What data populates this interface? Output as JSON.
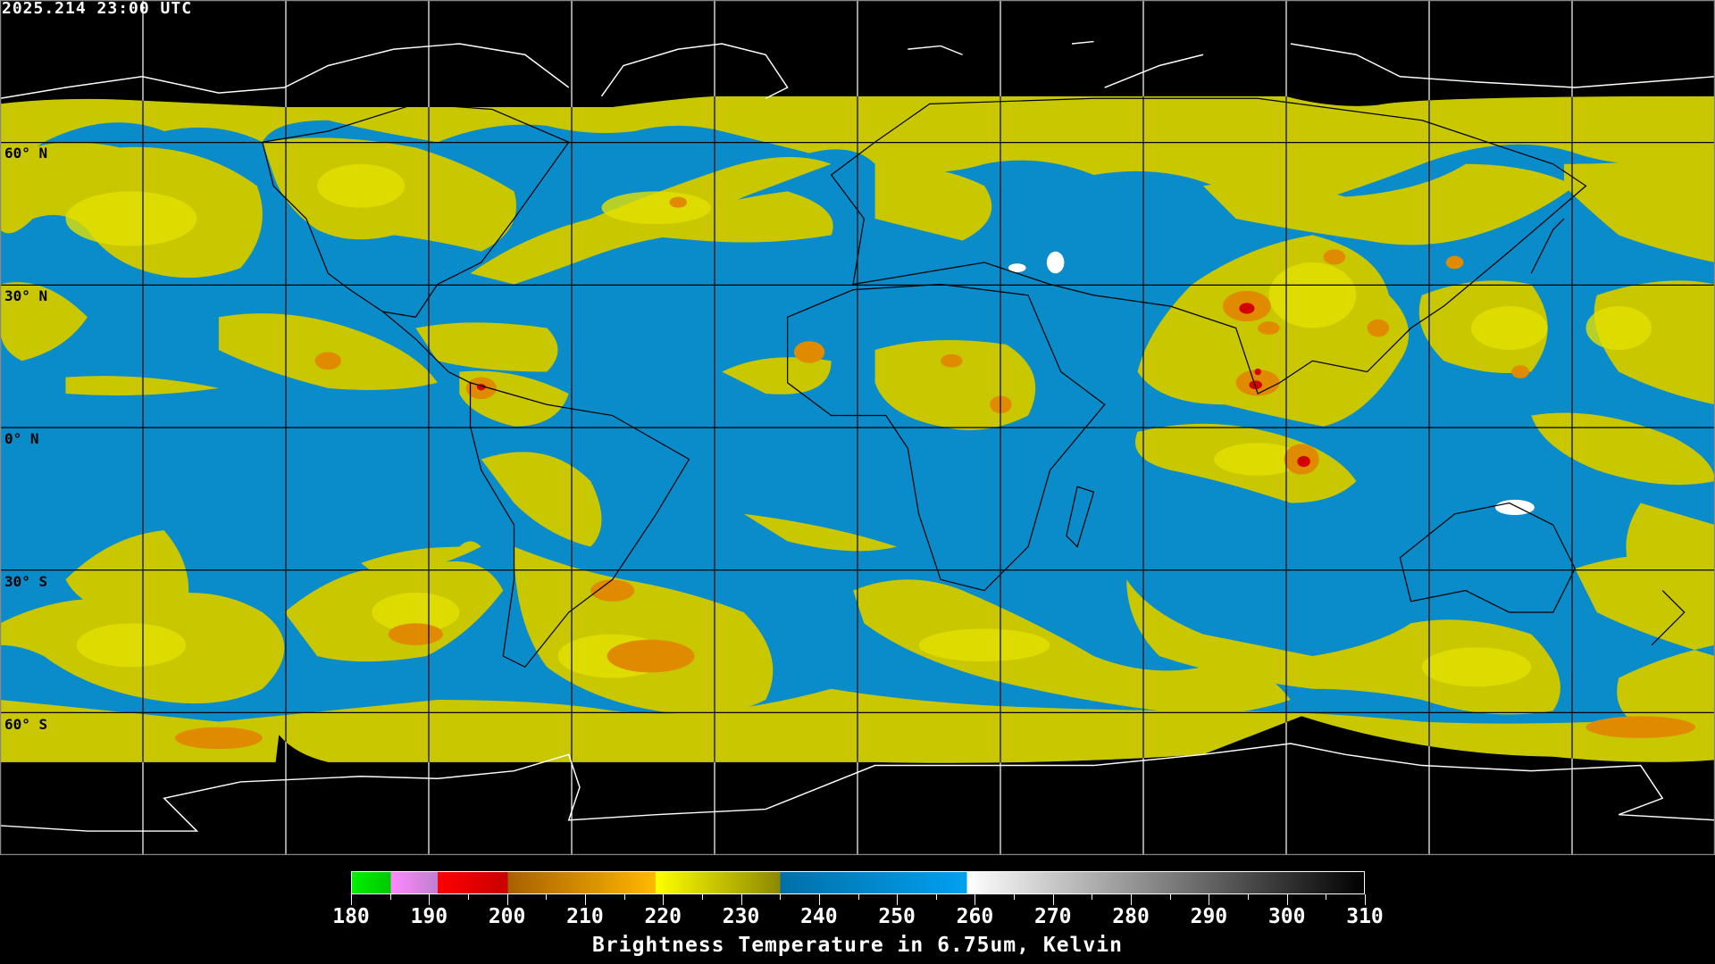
{
  "header": {
    "timestamp": "2025.214 23:00 UTC"
  },
  "map": {
    "projection": "equirectangular",
    "lon_range": [
      -180,
      180
    ],
    "lat_range": [
      -90,
      90
    ],
    "grid_spacing_deg": 30,
    "lat_labels": [
      "60° N",
      "30° N",
      "0° N",
      "30° S",
      "60° S"
    ],
    "colors": {
      "moist_blue": "#0a8ccb",
      "dry_yellow": "#c9c700",
      "bright_yellow": "#e2e000",
      "orange": "#e08a00",
      "red": "#d40000",
      "cold_white": "#ffffff",
      "coast_over_data": "#000000",
      "coast_outside": "#ffffff"
    }
  },
  "colorbar": {
    "min": 180,
    "max": 310,
    "tick_labels": [
      "180",
      "190",
      "200",
      "210",
      "220",
      "230",
      "240",
      "250",
      "260",
      "270",
      "280",
      "290",
      "300",
      "310"
    ],
    "segments": [
      {
        "from": 180,
        "to": 185,
        "colors": [
          "#00f000",
          "#00c800"
        ]
      },
      {
        "from": 185,
        "to": 191,
        "colors": [
          "#ff88ff",
          "#c080d0"
        ]
      },
      {
        "from": 191,
        "to": 200,
        "colors": [
          "#ff0000",
          "#c80000"
        ]
      },
      {
        "from": 200,
        "to": 219,
        "colors": [
          "#a86000",
          "#ffb800"
        ]
      },
      {
        "from": 219,
        "to": 235,
        "colors": [
          "#ffff00",
          "#8c8800"
        ]
      },
      {
        "from": 235,
        "to": 259,
        "colors": [
          "#0070a8",
          "#00a0f0"
        ]
      },
      {
        "from": 259,
        "to": 310,
        "colors": [
          "#ffffff",
          "#000000"
        ]
      }
    ],
    "title": "Brightness Temperature in 6.75um, Kelvin"
  }
}
